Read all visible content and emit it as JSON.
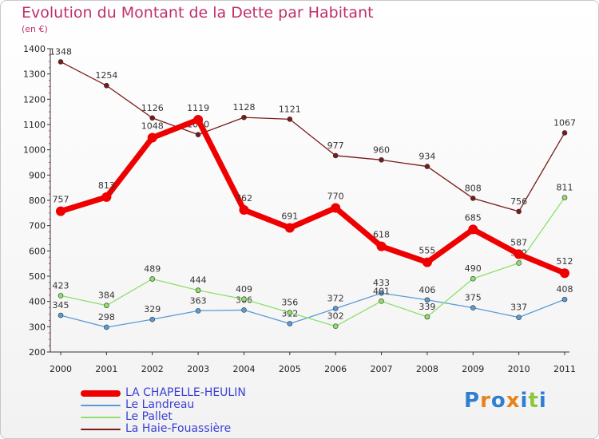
{
  "title": "Evolution du Montant de la Dette par Habitant",
  "subtitle": "(en €)",
  "logo": {
    "letters": [
      "P",
      "r",
      "o",
      "x",
      "i",
      "t",
      "i"
    ],
    "colors": [
      "#2f7fd0",
      "#e8821e",
      "#2f7fd0",
      "#e8821e",
      "#2f7fd0",
      "#8dc63f",
      "#2f7fd0"
    ]
  },
  "chart_data": {
    "type": "line",
    "x": [
      "2000",
      "2001",
      "2002",
      "2003",
      "2004",
      "2005",
      "2006",
      "2007",
      "2008",
      "2009",
      "2010",
      "2011"
    ],
    "ylim": [
      200,
      1400
    ],
    "yticks": [
      200,
      300,
      400,
      500,
      600,
      700,
      800,
      900,
      1000,
      1100,
      1200,
      1300,
      1400
    ],
    "grid": false,
    "legend_position": "bottom-left",
    "series": [
      {
        "name": "La Haie-Fouassière",
        "color": "#7a1a1a",
        "values": [
          1348,
          1254,
          1126,
          1060,
          1128,
          1121,
          977,
          960,
          934,
          808,
          756,
          1067
        ],
        "labels": [
          "1348",
          "1254",
          "1126",
          "1060",
          "1128",
          "1121",
          "977",
          "960",
          "934",
          "808",
          "756",
          "1067"
        ]
      },
      {
        "name": "Le Landreau",
        "color": "#5b9bd5",
        "values": [
          345,
          298,
          329,
          363,
          366,
          312,
          372,
          433,
          406,
          375,
          337,
          408
        ],
        "labels": [
          "345",
          "298",
          "329",
          "363",
          "366",
          "312",
          "372",
          "433",
          "406",
          "375",
          "337",
          "408"
        ]
      },
      {
        "name": "Le Pallet",
        "color": "#8ee06a",
        "values": [
          423,
          384,
          489,
          444,
          409,
          356,
          302,
          401,
          339,
          490,
          552,
          811
        ],
        "labels": [
          "423",
          "384",
          "489",
          "444",
          "409",
          "356",
          "302",
          "401",
          "339",
          "490",
          "552",
          "811"
        ]
      },
      {
        "name": "LA CHAPELLE-HEULIN",
        "color": "#ee0000",
        "values": [
          757,
          813,
          1048,
          1119,
          762,
          691,
          770,
          618,
          555,
          685,
          587,
          512
        ],
        "labels": [
          "757",
          "813",
          "1048",
          "1119",
          "762",
          "691",
          "770",
          "618",
          "555",
          "685",
          "587",
          "512"
        ]
      }
    ],
    "legend": [
      {
        "name": "LA CHAPELLE-HEULIN",
        "color": "#ee0000"
      },
      {
        "name": "Le Landreau",
        "color": "#5b9bd5"
      },
      {
        "name": "Le Pallet",
        "color": "#8ee06a"
      },
      {
        "name": "La Haie-Fouassière",
        "color": "#7a1a1a"
      }
    ]
  }
}
